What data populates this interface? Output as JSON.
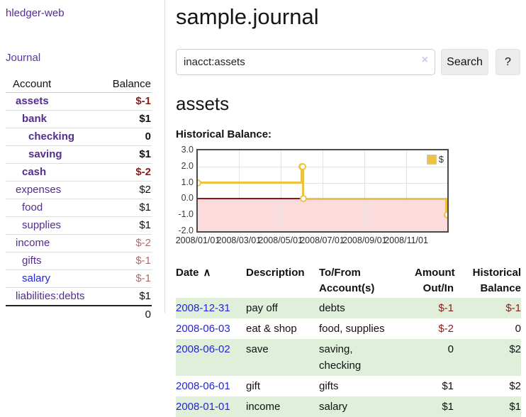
{
  "colors": {
    "link_purple": "#542d8f",
    "link_blue": "#2424dd",
    "negative_strong": "#8e1b1b",
    "negative_soft": "#b36a6a",
    "row_stripe_green": "#dfefda",
    "chart_gold": "#edc240",
    "chart_negative_fill": "#fbdbdb",
    "chart_zero_line": "#8f1414"
  },
  "sidebar": {
    "app_title": "hledger-web",
    "nav": {
      "journal": "Journal"
    },
    "accounts_table": {
      "headers": {
        "account": "Account",
        "balance": "Balance"
      },
      "rows": [
        {
          "account": "assets",
          "balance": "$-1",
          "indent": 0,
          "bold": true,
          "balance_style": "neg-strong",
          "link_style": "purple"
        },
        {
          "account": "bank",
          "balance": "$1",
          "indent": 1,
          "bold": true,
          "balance_style": "",
          "link_style": "purple"
        },
        {
          "account": "checking",
          "balance": "0",
          "indent": 2,
          "bold": true,
          "balance_style": "",
          "link_style": "purple"
        },
        {
          "account": "saving",
          "balance": "$1",
          "indent": 2,
          "bold": true,
          "balance_style": "",
          "link_style": "purple"
        },
        {
          "account": "cash",
          "balance": "$-2",
          "indent": 1,
          "bold": true,
          "balance_style": "neg-strong",
          "link_style": "purple"
        },
        {
          "account": "expenses",
          "balance": "$2",
          "indent": 0,
          "bold": false,
          "balance_style": "",
          "link_style": "purple"
        },
        {
          "account": "food",
          "balance": "$1",
          "indent": 1,
          "bold": false,
          "balance_style": "",
          "link_style": "purple"
        },
        {
          "account": "supplies",
          "balance": "$1",
          "indent": 1,
          "bold": false,
          "balance_style": "",
          "link_style": "purple"
        },
        {
          "account": "income",
          "balance": "$-2",
          "indent": 0,
          "bold": false,
          "balance_style": "neg-soft",
          "link_style": "purple"
        },
        {
          "account": "gifts",
          "balance": "$-1",
          "indent": 1,
          "bold": false,
          "balance_style": "neg-soft",
          "link_style": "purple"
        },
        {
          "account": "salary",
          "balance": "$-1",
          "indent": 1,
          "bold": false,
          "balance_style": "neg-soft",
          "link_style": "blue"
        },
        {
          "account": "liabilities:debts",
          "balance": "$1",
          "indent": 0,
          "bold": false,
          "balance_style": "",
          "link_style": "purple"
        }
      ],
      "total": "0"
    }
  },
  "main": {
    "page_title": "sample.journal",
    "search": {
      "value": "inacct:assets",
      "clear_label": "×",
      "search_button": "Search",
      "help_button": "?"
    },
    "account_heading": "assets",
    "section_label": "Historical Balance:"
  },
  "chart_data": {
    "type": "line",
    "style": "step",
    "title": "Historical Balance:",
    "series": [
      {
        "name": "$",
        "color": "#edc240",
        "points": [
          [
            "2008-01-01",
            1
          ],
          [
            "2008-06-01",
            2
          ],
          [
            "2008-06-02",
            2
          ],
          [
            "2008-06-03",
            0
          ],
          [
            "2008-12-31",
            -1
          ]
        ]
      }
    ],
    "x_range": [
      "2008-01-01",
      "2008-12-31"
    ],
    "ylim": [
      -2,
      3
    ],
    "x_ticks": [
      "2008/01/01",
      "2008/03/01",
      "2008/05/01",
      "2008/07/01",
      "2008/09/01",
      "2008/11/01"
    ],
    "y_ticks": [
      3,
      2,
      1,
      0,
      -1,
      -2
    ],
    "y_tick_labels": [
      "3.0",
      "2.0",
      "1.0",
      "0.0",
      "-1.0",
      "-2.0"
    ],
    "grid": true,
    "legend": {
      "label": "$",
      "position": "top-right"
    },
    "negative_region_below": 0
  },
  "register": {
    "headers": {
      "date": "Date",
      "sort_icon": "∧",
      "description": "Description",
      "tofrom": "To/From\nAccount(s)",
      "amount": "Amount\nOut/In",
      "historical": "Historical\nBalance"
    },
    "rows": [
      {
        "date": "2008-12-31",
        "description": "pay off",
        "accounts": "debts",
        "amount": "$-1",
        "amount_negative": true,
        "balance": "$-1",
        "balance_negative": true
      },
      {
        "date": "2008-06-03",
        "description": "eat & shop",
        "accounts": "food, supplies",
        "amount": "$-2",
        "amount_negative": true,
        "balance": "0",
        "balance_negative": false
      },
      {
        "date": "2008-06-02",
        "description": "save",
        "accounts": "saving,\nchecking",
        "amount": "0",
        "amount_negative": false,
        "balance": "$2",
        "balance_negative": false
      },
      {
        "date": "2008-06-01",
        "description": "gift",
        "accounts": "gifts",
        "amount": "$1",
        "amount_negative": false,
        "balance": "$2",
        "balance_negative": false
      },
      {
        "date": "2008-01-01",
        "description": "income",
        "accounts": "salary",
        "amount": "$1",
        "amount_negative": false,
        "balance": "$1",
        "balance_negative": false
      }
    ]
  }
}
